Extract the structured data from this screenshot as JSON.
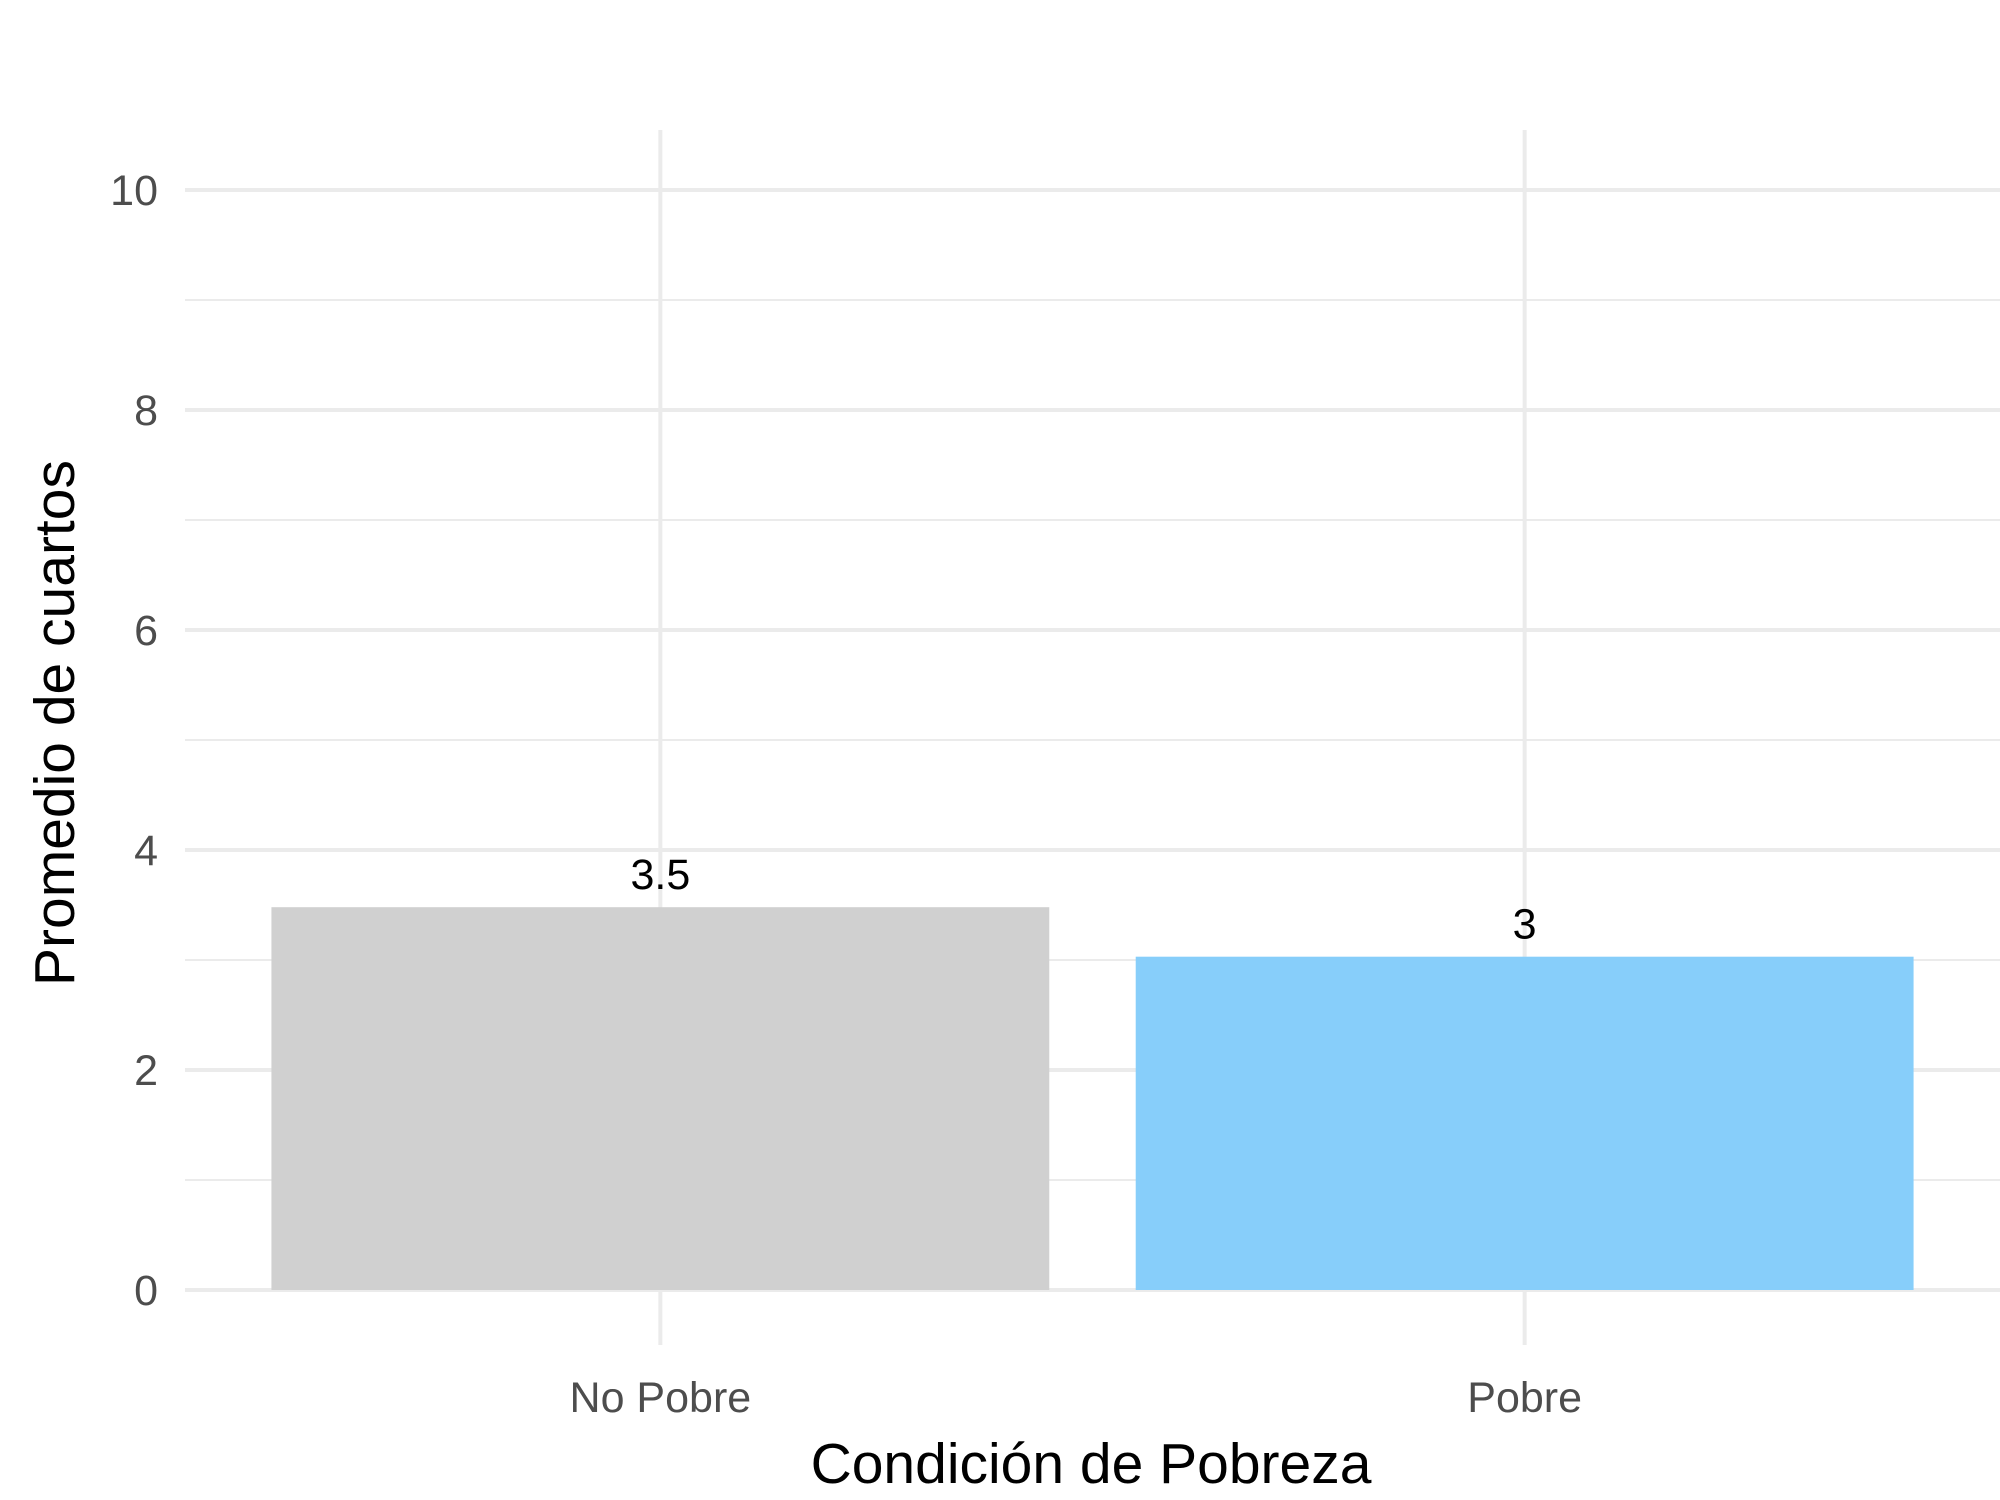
{
  "chart_data": {
    "type": "bar",
    "title": "",
    "xlabel": "Condición de Pobreza",
    "ylabel": "Promedio de cuartos",
    "categories": [
      "No Pobre",
      "Pobre"
    ],
    "values": [
      3.48,
      3.03
    ],
    "data_labels": [
      "3.5",
      "3"
    ],
    "colors": [
      "#d0d0d0",
      "#87cefa"
    ],
    "ylim": [
      0,
      10.5
    ],
    "yticks": [
      0,
      2,
      4,
      6,
      8,
      10
    ],
    "ytick_labels": [
      "0",
      "2",
      "4",
      "6",
      "8",
      "10"
    ],
    "minor_yticks": [
      1,
      3,
      5,
      7,
      9
    ],
    "grid": true,
    "legend": "none"
  }
}
